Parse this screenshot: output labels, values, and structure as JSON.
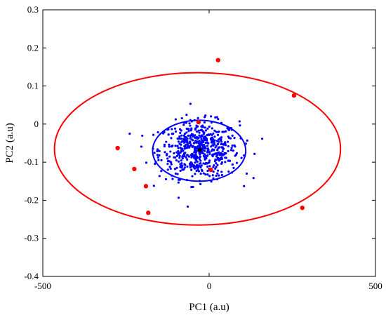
{
  "chart_data": {
    "type": "scatter",
    "xlabel": "PC1 (a.u)",
    "ylabel": "PC2 (a.u)",
    "xlim": [
      -500,
      500
    ],
    "ylim": [
      -0.4,
      0.3
    ],
    "xticks": [
      -500,
      0,
      500
    ],
    "yticks": [
      -0.4,
      -0.3,
      -0.2,
      -0.1,
      0,
      0.1,
      0.2,
      0.3
    ],
    "xtick_labels": [
      "-500",
      "0",
      "500"
    ],
    "ytick_labels": [
      "-0.4",
      "-0.3",
      "-0.2",
      "-0.1",
      "0",
      "0.1",
      "0.2",
      "0.3"
    ],
    "grid": false,
    "series": [
      {
        "role": "cluster",
        "color": "#0000ff",
        "count": 600,
        "mean": [
          -30,
          -0.068
        ],
        "std": [
          60,
          0.037
        ]
      },
      {
        "role": "outliers",
        "color": "#ff0000",
        "points": [
          [
            27,
            0.168
          ],
          [
            255,
            0.075
          ],
          [
            -275,
            -0.063
          ],
          [
            -225,
            -0.118
          ],
          [
            -190,
            -0.163
          ],
          [
            -183,
            -0.233
          ],
          [
            280,
            -0.22
          ],
          [
            -32,
            0.005
          ],
          [
            5,
            -0.12
          ]
        ]
      },
      {
        "role": "centroid",
        "color": "#000000",
        "points": [
          [
            -28,
            -0.068
          ]
        ]
      }
    ],
    "ellipses": [
      {
        "color": "#0000ff",
        "center": [
          -30,
          -0.07
        ],
        "semi_axes": [
          140,
          0.08
        ],
        "rotation_deg": 0
      },
      {
        "color": "#ff0000",
        "center": [
          -35,
          -0.065
        ],
        "semi_axes": [
          430,
          0.2
        ],
        "rotation_deg": 0
      }
    ]
  }
}
